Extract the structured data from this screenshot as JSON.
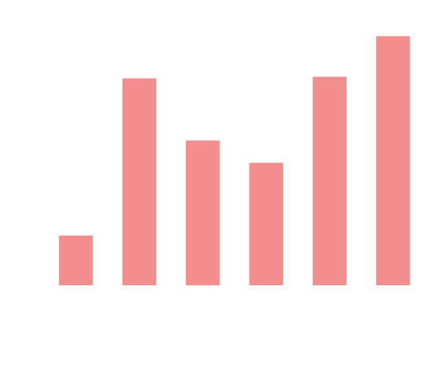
{
  "chart_data": {
    "type": "bar",
    "categories": [
      "",
      "",
      "",
      "",
      "",
      ""
    ],
    "values": [
      6,
      25,
      17.5,
      14.8,
      25.2,
      30.1
    ],
    "ylim": [
      0,
      32
    ],
    "bar_color": "#f28e8e",
    "background": "#ffffff",
    "grid": false,
    "axes_visible": false
  }
}
